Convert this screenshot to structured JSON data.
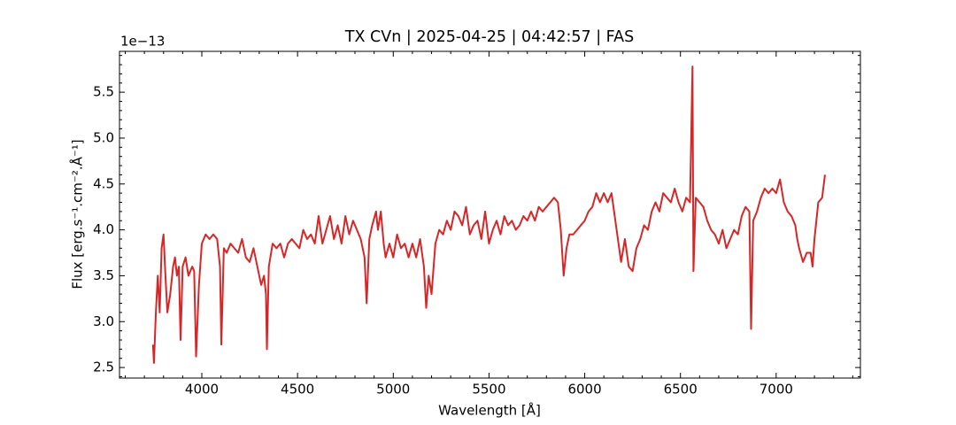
{
  "chart_data": {
    "type": "line",
    "title": "TX CVn | 2025-04-25 | 04:42:57 | FAS",
    "xlabel": "Wavelength [Å]",
    "ylabel": "Flux [erg.s⁻¹.cm⁻².Å⁻¹]",
    "y_offset_label": "1e−13",
    "color": "#d62728",
    "xlim": [
      3570,
      7440
    ],
    "ylim": [
      2.385,
      5.945
    ],
    "xticks": [
      4000,
      4500,
      5000,
      5500,
      6000,
      6500,
      7000
    ],
    "yticks": [
      2.5,
      {
        "value": 3,
        "label": "3.0"
      },
      3.5,
      {
        "value": 4,
        "label": "4.0"
      },
      4.5,
      {
        "value": 5,
        "label": "5.0"
      },
      5.5
    ],
    "xminorticks": [
      3600,
      3700,
      3800,
      3900,
      4100,
      4200,
      4300,
      4400,
      4600,
      4700,
      4800,
      4900,
      5100,
      5200,
      5300,
      5400,
      5600,
      5700,
      5800,
      5900,
      6100,
      6200,
      6300,
      6400,
      6600,
      6700,
      6800,
      6900,
      7100,
      7200,
      7300,
      7400
    ],
    "yminorticks": [
      2.4,
      2.6,
      2.7,
      2.8,
      2.9,
      3.1,
      3.2,
      3.3,
      3.4,
      3.6,
      3.7,
      3.8,
      3.9,
      4.1,
      4.2,
      4.3,
      4.4,
      4.6,
      4.7,
      4.8,
      4.9,
      5.1,
      5.2,
      5.3,
      5.4,
      5.6,
      5.7,
      5.8,
      5.9
    ],
    "x": [
      3745,
      3750,
      3760,
      3770,
      3780,
      3790,
      3800,
      3810,
      3820,
      3835,
      3850,
      3860,
      3870,
      3880,
      3889,
      3900,
      3915,
      3930,
      3950,
      3960,
      3970,
      3985,
      4000,
      4020,
      4040,
      4060,
      4080,
      4095,
      4102,
      4115,
      4130,
      4150,
      4170,
      4190,
      4210,
      4230,
      4250,
      4270,
      4290,
      4310,
      4325,
      4335,
      4340,
      4350,
      4370,
      4390,
      4410,
      4430,
      4450,
      4470,
      4490,
      4510,
      4530,
      4550,
      4570,
      4590,
      4610,
      4630,
      4650,
      4670,
      4690,
      4710,
      4730,
      4750,
      4770,
      4790,
      4810,
      4830,
      4850,
      4861,
      4875,
      4890,
      4910,
      4920,
      4935,
      4950,
      4960,
      4980,
      5000,
      5020,
      5040,
      5060,
      5080,
      5100,
      5120,
      5140,
      5160,
      5172,
      5185,
      5200,
      5220,
      5240,
      5260,
      5280,
      5300,
      5320,
      5340,
      5360,
      5380,
      5400,
      5420,
      5440,
      5460,
      5480,
      5500,
      5520,
      5540,
      5560,
      5580,
      5600,
      5620,
      5640,
      5660,
      5680,
      5700,
      5720,
      5740,
      5760,
      5780,
      5800,
      5820,
      5840,
      5860,
      5875,
      5890,
      5905,
      5920,
      5940,
      5960,
      5980,
      6000,
      6020,
      6040,
      6060,
      6080,
      6100,
      6120,
      6140,
      6160,
      6180,
      6190,
      6210,
      6230,
      6250,
      6270,
      6290,
      6310,
      6330,
      6350,
      6370,
      6390,
      6410,
      6430,
      6450,
      6470,
      6490,
      6510,
      6530,
      6550,
      6563,
      6568,
      6580,
      6600,
      6620,
      6640,
      6660,
      6680,
      6700,
      6720,
      6740,
      6760,
      6780,
      6800,
      6820,
      6840,
      6860,
      6869,
      6880,
      6900,
      6920,
      6940,
      6960,
      6980,
      7000,
      7020,
      7040,
      7060,
      7080,
      7100,
      7110,
      7120,
      7140,
      7160,
      7180,
      7190,
      7200,
      7220,
      7240,
      7255
    ],
    "values": [
      2.75,
      2.55,
      3.1,
      3.5,
      3.1,
      3.8,
      3.95,
      3.5,
      3.1,
      3.3,
      3.6,
      3.7,
      3.5,
      3.6,
      2.8,
      3.6,
      3.7,
      3.5,
      3.6,
      3.55,
      2.62,
      3.4,
      3.85,
      3.95,
      3.9,
      3.95,
      3.9,
      3.6,
      2.75,
      3.8,
      3.75,
      3.85,
      3.8,
      3.75,
      3.9,
      3.7,
      3.65,
      3.8,
      3.6,
      3.4,
      3.5,
      3.3,
      2.7,
      3.6,
      3.85,
      3.8,
      3.85,
      3.7,
      3.85,
      3.9,
      3.85,
      3.8,
      4.0,
      3.9,
      3.95,
      3.85,
      4.15,
      3.85,
      4.0,
      4.15,
      3.9,
      4.05,
      3.85,
      4.15,
      3.95,
      4.1,
      4.0,
      3.9,
      3.7,
      3.2,
      3.9,
      4.05,
      4.2,
      4.0,
      4.2,
      3.85,
      3.7,
      3.85,
      3.7,
      3.95,
      3.8,
      3.85,
      3.7,
      3.85,
      3.7,
      3.9,
      3.6,
      3.15,
      3.5,
      3.3,
      3.85,
      4.0,
      3.95,
      4.1,
      4.0,
      4.2,
      4.15,
      4.05,
      4.25,
      3.95,
      4.05,
      4.1,
      3.9,
      4.2,
      3.85,
      4.0,
      4.1,
      3.95,
      4.15,
      4.05,
      4.1,
      4.0,
      4.05,
      4.15,
      4.1,
      4.2,
      4.1,
      4.25,
      4.2,
      4.25,
      4.3,
      4.35,
      4.3,
      4.0,
      3.5,
      3.8,
      3.95,
      3.95,
      4.0,
      4.05,
      4.1,
      4.2,
      4.25,
      4.4,
      4.3,
      4.4,
      4.3,
      4.4,
      4.1,
      3.8,
      3.65,
      3.9,
      3.6,
      3.55,
      3.8,
      3.9,
      4.05,
      4.0,
      4.2,
      4.3,
      4.2,
      4.4,
      4.35,
      4.3,
      4.45,
      4.3,
      4.2,
      4.35,
      4.3,
      5.78,
      3.55,
      4.35,
      4.3,
      4.25,
      4.1,
      4.0,
      3.95,
      3.85,
      4.0,
      3.8,
      3.9,
      4.0,
      3.95,
      4.15,
      4.25,
      4.2,
      2.92,
      4.1,
      4.2,
      4.35,
      4.45,
      4.4,
      4.45,
      4.4,
      4.55,
      4.3,
      4.2,
      4.15,
      4.05,
      3.9,
      3.8,
      3.65,
      3.75,
      3.75,
      3.6,
      3.9,
      4.3,
      4.35,
      4.6
    ]
  }
}
